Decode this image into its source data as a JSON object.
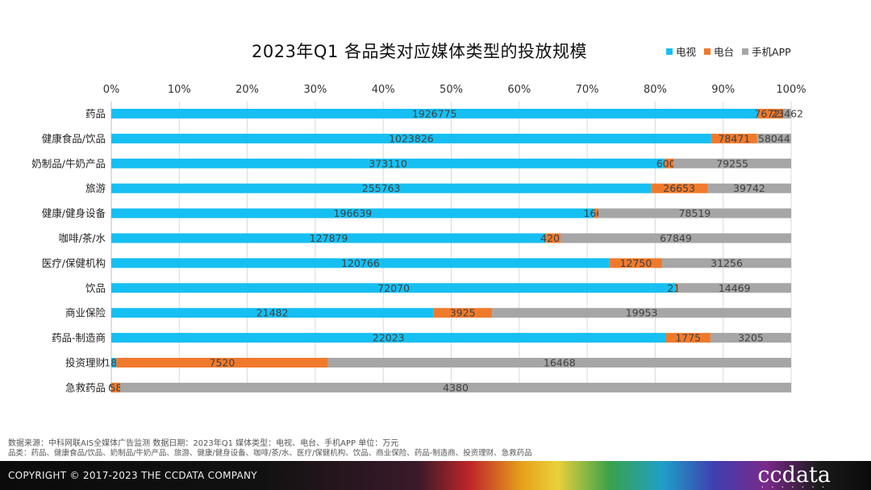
{
  "colors": {
    "tv": "#16bff2",
    "radio": "#f07a2c",
    "app": "#a6a6a6",
    "grid": "#d9d9d9"
  },
  "chart_data": {
    "type": "bar",
    "orientation": "horizontal",
    "stacked": "percent",
    "title": "2023年Q1 各品类对应媒体类型的投放规模",
    "x_ticks": [
      "0%",
      "10%",
      "20%",
      "30%",
      "40%",
      "50%",
      "60%",
      "70%",
      "80%",
      "90%",
      "100%"
    ],
    "xlim": [
      0,
      100
    ],
    "legend_position": "top-right",
    "categories": [
      "药品",
      "健康食品/饮品",
      "奶制品/牛奶产品",
      "旅游",
      "健康/健身设备",
      "咖啡/茶/水",
      "医疗/保健机构",
      "饮品",
      "商业保险",
      "药品-制造商",
      "投资理财",
      "急救药品"
    ],
    "series": [
      {
        "name": "电视",
        "key": "tv",
        "values": [
          1926775,
          1023826,
          373110,
          255763,
          196639,
          127879,
          120766,
          72070,
          21482,
          22023,
          180,
          0
        ]
      },
      {
        "name": "电台",
        "key": "radio",
        "values": [
          76723,
          78471,
          6009,
          26653,
          1663,
          4208,
          12750,
          215,
          3925,
          1775,
          7520,
          58
        ]
      },
      {
        "name": "手机APP",
        "key": "app",
        "values": [
          23462,
          58044,
          79255,
          39742,
          78519,
          67849,
          31256,
          14469,
          19953,
          3205,
          16468,
          4380
        ]
      }
    ]
  },
  "footer": {
    "source_line": "数据来源：中科网联AIS全媒体广告监测 数据日期：2023年Q1 媒体类型：电视、电台、手机APP 单位：万元",
    "category_line": "品类：药品、健康食品/饮品、奶制品/牛奶产品、旅游、健康/健身设备、咖啡/茶/水、医疗/保健机构、饮品、商业保险、药品-制造商、投资理财、急救药品",
    "copyright": "COPYRIGHT © 2017-2023 THE CCDATA COMPANY",
    "brand": "ccdata"
  }
}
